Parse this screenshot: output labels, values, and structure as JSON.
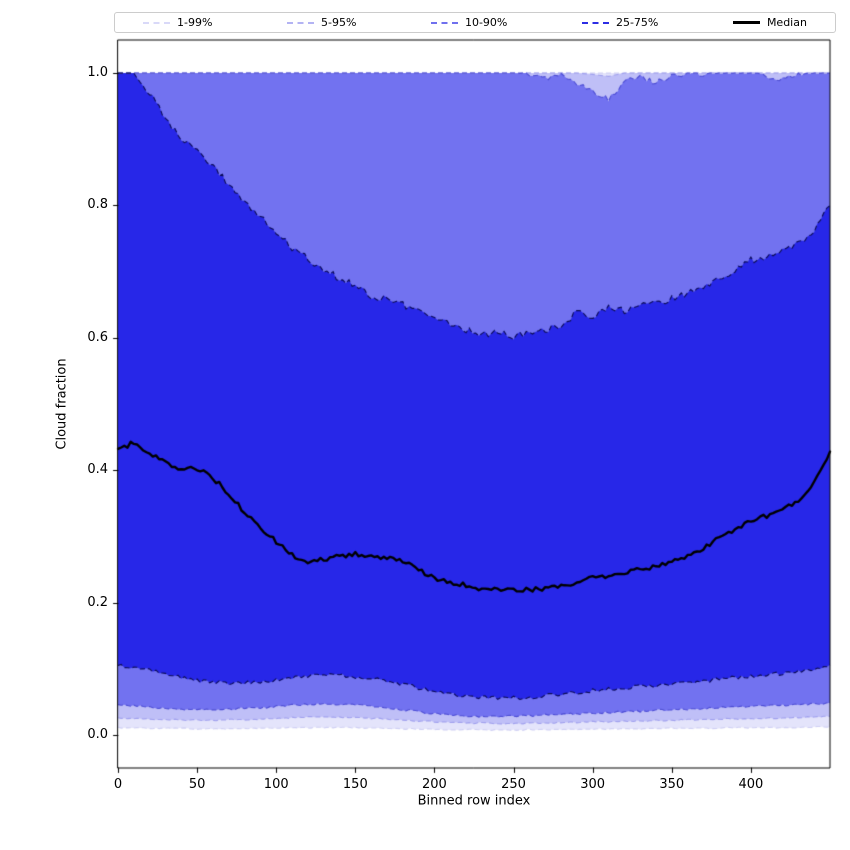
{
  "legend": {
    "items": [
      {
        "label": "1-99%",
        "color": "#d9d9f8",
        "style": "dashed"
      },
      {
        "label": "5-95%",
        "color": "#b3b3f3",
        "style": "dashed"
      },
      {
        "label": "10-90%",
        "color": "#7070ee",
        "style": "dashed"
      },
      {
        "label": "25-75%",
        "color": "#2d2de4",
        "style": "dashed"
      },
      {
        "label": "Median",
        "color": "#000000",
        "style": "solid"
      }
    ]
  },
  "chart_data": {
    "type": "area",
    "title": "",
    "xlabel": "Binned row index",
    "ylabel": "Cloud fraction",
    "xlim": [
      0,
      450
    ],
    "ylim": [
      -0.05,
      1.05
    ],
    "grid": false,
    "legend_position": "top",
    "x_tick_values": [
      0,
      50,
      100,
      150,
      200,
      250,
      300,
      350,
      400
    ],
    "x_tick_labels": [
      "0",
      "50",
      "100",
      "150",
      "200",
      "250",
      "300",
      "350",
      "400"
    ],
    "y_tick_values": [
      0.0,
      0.2,
      0.4,
      0.6,
      0.8,
      1.0
    ],
    "y_tick_labels": [
      "0.0",
      "0.2",
      "0.4",
      "0.6",
      "0.8",
      "1.0"
    ],
    "x": [
      0,
      10,
      20,
      30,
      40,
      50,
      60,
      70,
      80,
      90,
      100,
      110,
      120,
      130,
      140,
      150,
      160,
      170,
      180,
      190,
      200,
      210,
      220,
      230,
      240,
      250,
      260,
      270,
      280,
      290,
      300,
      310,
      320,
      330,
      340,
      350,
      360,
      370,
      380,
      390,
      400,
      410,
      420,
      430,
      440,
      450
    ],
    "series": [
      {
        "name": "p1",
        "percentile": 1,
        "values": [
          0.011,
          0.011,
          0.01,
          0.01,
          0.01,
          0.009,
          0.009,
          0.009,
          0.01,
          0.01,
          0.01,
          0.011,
          0.011,
          0.011,
          0.011,
          0.011,
          0.01,
          0.01,
          0.009,
          0.009,
          0.008,
          0.008,
          0.008,
          0.008,
          0.007,
          0.007,
          0.008,
          0.008,
          0.008,
          0.008,
          0.009,
          0.009,
          0.009,
          0.009,
          0.01,
          0.01,
          0.01,
          0.01,
          0.01,
          0.011,
          0.011,
          0.011,
          0.011,
          0.011,
          0.012,
          0.012
        ]
      },
      {
        "name": "p5",
        "percentile": 5,
        "values": [
          0.026,
          0.025,
          0.024,
          0.023,
          0.023,
          0.022,
          0.022,
          0.023,
          0.023,
          0.024,
          0.025,
          0.026,
          0.027,
          0.027,
          0.027,
          0.026,
          0.025,
          0.024,
          0.023,
          0.021,
          0.02,
          0.019,
          0.018,
          0.018,
          0.017,
          0.017,
          0.018,
          0.018,
          0.019,
          0.019,
          0.02,
          0.02,
          0.021,
          0.021,
          0.022,
          0.022,
          0.023,
          0.023,
          0.024,
          0.024,
          0.025,
          0.025,
          0.026,
          0.026,
          0.027,
          0.028
        ]
      },
      {
        "name": "p10",
        "percentile": 10,
        "values": [
          0.046,
          0.044,
          0.042,
          0.04,
          0.039,
          0.038,
          0.038,
          0.039,
          0.04,
          0.041,
          0.043,
          0.045,
          0.046,
          0.047,
          0.046,
          0.045,
          0.043,
          0.041,
          0.038,
          0.035,
          0.032,
          0.03,
          0.029,
          0.028,
          0.028,
          0.028,
          0.029,
          0.03,
          0.031,
          0.032,
          0.033,
          0.034,
          0.035,
          0.036,
          0.037,
          0.038,
          0.039,
          0.04,
          0.041,
          0.042,
          0.043,
          0.044,
          0.045,
          0.046,
          0.047,
          0.048
        ]
      },
      {
        "name": "p25",
        "percentile": 25,
        "values": [
          0.106,
          0.101,
          0.097,
          0.092,
          0.087,
          0.082,
          0.08,
          0.078,
          0.079,
          0.081,
          0.083,
          0.086,
          0.089,
          0.091,
          0.09,
          0.088,
          0.085,
          0.082,
          0.077,
          0.071,
          0.066,
          0.062,
          0.059,
          0.057,
          0.056,
          0.056,
          0.057,
          0.059,
          0.062,
          0.064,
          0.067,
          0.069,
          0.071,
          0.073,
          0.075,
          0.077,
          0.079,
          0.081,
          0.084,
          0.087,
          0.089,
          0.091,
          0.093,
          0.096,
          0.1,
          0.106
        ]
      },
      {
        "name": "median",
        "percentile": 50,
        "values": [
          0.43,
          0.442,
          0.425,
          0.412,
          0.4,
          0.403,
          0.388,
          0.365,
          0.335,
          0.312,
          0.292,
          0.272,
          0.262,
          0.266,
          0.27,
          0.274,
          0.27,
          0.268,
          0.262,
          0.25,
          0.237,
          0.23,
          0.226,
          0.221,
          0.219,
          0.22,
          0.219,
          0.221,
          0.226,
          0.231,
          0.239,
          0.238,
          0.244,
          0.25,
          0.255,
          0.261,
          0.27,
          0.281,
          0.298,
          0.31,
          0.324,
          0.331,
          0.341,
          0.352,
          0.382,
          0.428
        ]
      },
      {
        "name": "p75",
        "percentile": 75,
        "values": [
          1.0,
          1.0,
          0.97,
          0.932,
          0.903,
          0.882,
          0.858,
          0.832,
          0.805,
          0.782,
          0.76,
          0.735,
          0.72,
          0.703,
          0.69,
          0.678,
          0.663,
          0.658,
          0.65,
          0.641,
          0.632,
          0.62,
          0.612,
          0.604,
          0.608,
          0.601,
          0.608,
          0.612,
          0.618,
          0.638,
          0.63,
          0.648,
          0.641,
          0.649,
          0.651,
          0.659,
          0.668,
          0.678,
          0.69,
          0.7,
          0.718,
          0.72,
          0.731,
          0.742,
          0.76,
          0.8
        ]
      },
      {
        "name": "p90",
        "percentile": 90,
        "values": [
          1,
          1,
          1,
          1,
          1,
          1,
          1,
          1,
          1,
          1,
          1,
          1,
          1,
          1,
          1,
          1,
          1,
          1,
          1,
          1,
          1,
          1,
          1,
          1,
          1,
          1,
          0.999,
          0.992,
          0.997,
          0.986,
          0.972,
          0.961,
          0.987,
          0.994,
          0.985,
          0.996,
          1,
          0.998,
          1,
          1,
          1,
          0.996,
          0.991,
          0.999,
          1,
          1
        ]
      },
      {
        "name": "p95",
        "percentile": 95,
        "values": [
          1,
          1,
          1,
          1,
          1,
          1,
          1,
          1,
          1,
          1,
          1,
          1,
          1,
          1,
          1,
          1,
          1,
          1,
          1,
          1,
          1,
          1,
          1,
          1,
          1,
          1,
          1,
          1,
          1,
          1,
          0.998,
          0.995,
          1,
          1,
          1,
          1,
          1,
          1,
          1,
          1,
          1,
          1,
          1,
          1,
          1,
          1
        ]
      },
      {
        "name": "p99",
        "percentile": 99,
        "values": [
          1,
          1,
          1,
          1,
          1,
          1,
          1,
          1,
          1,
          1,
          1,
          1,
          1,
          1,
          1,
          1,
          1,
          1,
          1,
          1,
          1,
          1,
          1,
          1,
          1,
          1,
          1,
          1,
          1,
          1,
          1,
          1,
          1,
          1,
          1,
          1,
          1,
          1,
          1,
          1,
          1,
          1,
          1,
          1,
          1,
          1
        ]
      }
    ],
    "bands": [
      {
        "label": "1-99%",
        "lower": "p1",
        "upper": "p99",
        "fill": "#e4e4fb",
        "edge": "#cfcff4"
      },
      {
        "label": "5-95%",
        "lower": "p5",
        "upper": "p95",
        "fill": "#bfbff7",
        "edge": "#a0a0ee"
      },
      {
        "label": "10-90%",
        "lower": "p10",
        "upper": "p90",
        "fill": "#7272f0",
        "edge": "#4b4bd4"
      },
      {
        "label": "25-75%",
        "lower": "p25",
        "upper": "p75",
        "fill": "#2727e8",
        "edge": "#0a0a55"
      }
    ],
    "median_style": {
      "color": "#000000",
      "linewidth": 2.4
    }
  }
}
